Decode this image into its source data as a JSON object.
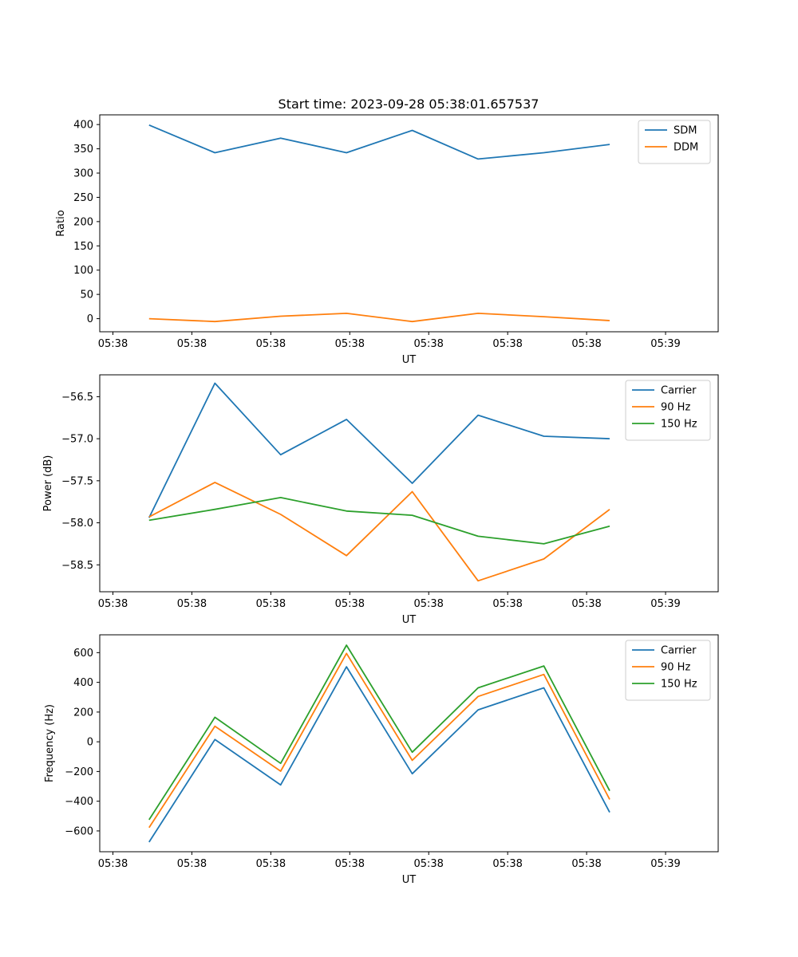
{
  "figure_title": "Start time: 2023-09-28 05:38:01.657537",
  "chart_data": [
    {
      "type": "line",
      "xlabel": "UT",
      "ylabel": "Ratio",
      "x_tick_labels": [
        "05:38",
        "05:38",
        "05:38",
        "05:38",
        "05:38",
        "05:38",
        "05:38"
      ],
      "last_x_tick_label": "05:39",
      "x": [
        0,
        1,
        2,
        3,
        4,
        5,
        6,
        7
      ],
      "xlim": [
        -0.75,
        8.65
      ],
      "ylim": [
        -27,
        420
      ],
      "yticks": [
        0,
        50,
        100,
        150,
        200,
        250,
        300,
        350,
        400
      ],
      "legend_position": "top-right",
      "series": [
        {
          "name": "SDM",
          "color": "#1f77b4",
          "values": [
            399,
            342,
            372,
            342,
            388,
            329,
            342,
            359
          ]
        },
        {
          "name": "DDM",
          "color": "#ff7f0e",
          "values": [
            0,
            -6,
            5,
            11,
            -6,
            11,
            4,
            -4
          ]
        }
      ]
    },
    {
      "type": "line",
      "xlabel": "UT",
      "ylabel": "Power (dB)",
      "x_tick_labels": [
        "05:38",
        "05:38",
        "05:38",
        "05:38",
        "05:38",
        "05:38",
        "05:38"
      ],
      "last_x_tick_label": "05:39",
      "x": [
        0,
        1,
        2,
        3,
        4,
        5,
        6,
        7
      ],
      "xlim": [
        -0.75,
        8.65
      ],
      "ylim": [
        -58.82,
        -56.24
      ],
      "yticks": [
        -58.5,
        -58.0,
        -57.5,
        -57.0,
        -56.5
      ],
      "ytick_labels": [
        "−58.5",
        "−58.0",
        "−57.5",
        "−57.0",
        "−56.5"
      ],
      "legend_position": "top-right",
      "series": [
        {
          "name": "Carrier",
          "color": "#1f77b4",
          "values": [
            -57.94,
            -56.34,
            -57.19,
            -56.77,
            -57.53,
            -56.72,
            -56.97,
            -57.0
          ]
        },
        {
          "name": "90 Hz",
          "color": "#ff7f0e",
          "values": [
            -57.93,
            -57.52,
            -57.9,
            -58.39,
            -57.63,
            -58.69,
            -58.43,
            -57.84
          ]
        },
        {
          "name": "150 Hz",
          "color": "#2ca02c",
          "values": [
            -57.97,
            -57.84,
            -57.7,
            -57.86,
            -57.91,
            -58.16,
            -58.25,
            -58.04
          ]
        }
      ]
    },
    {
      "type": "line",
      "xlabel": "UT",
      "ylabel": "Frequency (Hz)",
      "x_tick_labels": [
        "05:38",
        "05:38",
        "05:38",
        "05:38",
        "05:38",
        "05:38",
        "05:38"
      ],
      "last_x_tick_label": "05:39",
      "x": [
        0,
        1,
        2,
        3,
        4,
        5,
        6,
        7
      ],
      "xlim": [
        -0.75,
        8.65
      ],
      "ylim": [
        -740,
        720
      ],
      "yticks": [
        -600,
        -400,
        -200,
        0,
        200,
        400,
        600
      ],
      "ytick_labels": [
        "−600",
        "−400",
        "−200",
        "0",
        "200",
        "400",
        "600"
      ],
      "legend_position": "top-right",
      "series": [
        {
          "name": "Carrier",
          "color": "#1f77b4",
          "values": [
            -675,
            15,
            -290,
            505,
            -215,
            215,
            363,
            -475
          ]
        },
        {
          "name": "90 Hz",
          "color": "#ff7f0e",
          "values": [
            -578,
            105,
            -198,
            595,
            -125,
            305,
            453,
            -388
          ]
        },
        {
          "name": "150 Hz",
          "color": "#2ca02c",
          "values": [
            -525,
            165,
            -145,
            650,
            -70,
            363,
            510,
            -330
          ]
        }
      ]
    }
  ]
}
